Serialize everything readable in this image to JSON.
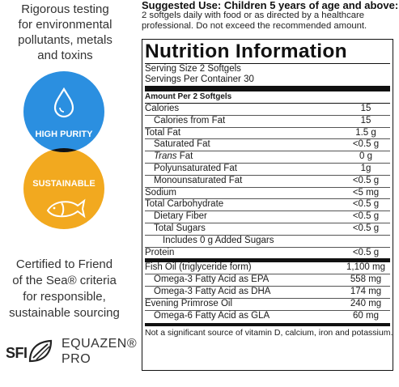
{
  "left": {
    "top_text": [
      "Rigorous testing",
      "for environmental",
      "pollutants, metals",
      "and toxins"
    ],
    "badge_top": "HIGH PURITY",
    "badge_bottom": "SUSTAINABLE",
    "badge_top_color": "#2b8fe0",
    "badge_bottom_color": "#f2a91f",
    "bottom_text": [
      "Certified to Friend",
      "of the Sea® criteria",
      "for responsible,",
      "sustainable sourcing"
    ],
    "logo_sfi": "SFI",
    "logo_equazen_1": "EQUAZEN®",
    "logo_equazen_2": "PRO"
  },
  "suggested": {
    "title": "Suggested Use: Children 5 years of age and above:",
    "body_1": "2 softgels daily with food or as directed by a healthcare",
    "body_2": "professional. Do not exceed the recommended amount."
  },
  "panel": {
    "title": "Nutrition Information",
    "serving_size": "Serving Size 2 Softgels",
    "servings_per": "Servings Per Container 30",
    "amount_per": "Amount Per 2 Softgels",
    "group1": [
      {
        "label": "Calories",
        "amount": "15",
        "level": 0
      },
      {
        "label": "Calories from Fat",
        "amount": "15",
        "level": 1
      },
      {
        "label": "Total Fat",
        "amount": "1.5 g",
        "level": 0
      },
      {
        "label": "Saturated Fat",
        "amount": "<0.5 g",
        "level": 1
      },
      {
        "label": "Trans Fat",
        "amount": "0 g",
        "level": 1
      },
      {
        "label": "Polyunsaturated Fat",
        "amount": "1g",
        "level": 1
      },
      {
        "label": "Monounsaturated Fat",
        "amount": "<0.5 g",
        "level": 1
      },
      {
        "label": "Sodium",
        "amount": "<5 mg",
        "level": 0
      },
      {
        "label": "Total Carbohydrate",
        "amount": "<0.5 g",
        "level": 0
      },
      {
        "label": "Dietary Fiber",
        "amount": "<0.5 g",
        "level": 1
      },
      {
        "label": "Total Sugars",
        "amount": "<0.5 g",
        "level": 1
      },
      {
        "label": "Includes 0 g Added Sugars",
        "amount": "",
        "level": 2
      },
      {
        "label": "Protein",
        "amount": "<0.5 g",
        "level": 0
      }
    ],
    "group2": [
      {
        "label": "Fish Oil (triglyceride form)",
        "amount": "1,100 mg",
        "level": 0
      },
      {
        "label": "Omega-3 Fatty Acid as EPA",
        "amount": "558 mg",
        "level": 1
      },
      {
        "label": "Omega-3 Fatty Acid as DHA",
        "amount": "174 mg",
        "level": 1
      },
      {
        "label": "Evening Primrose Oil",
        "amount": "240 mg",
        "level": 0
      },
      {
        "label": "Omega-6 Fatty Acid as GLA",
        "amount": "60 mg",
        "level": 1
      }
    ],
    "footnote": "Not a significant source of vitamin D, calcium, iron and potassium."
  }
}
